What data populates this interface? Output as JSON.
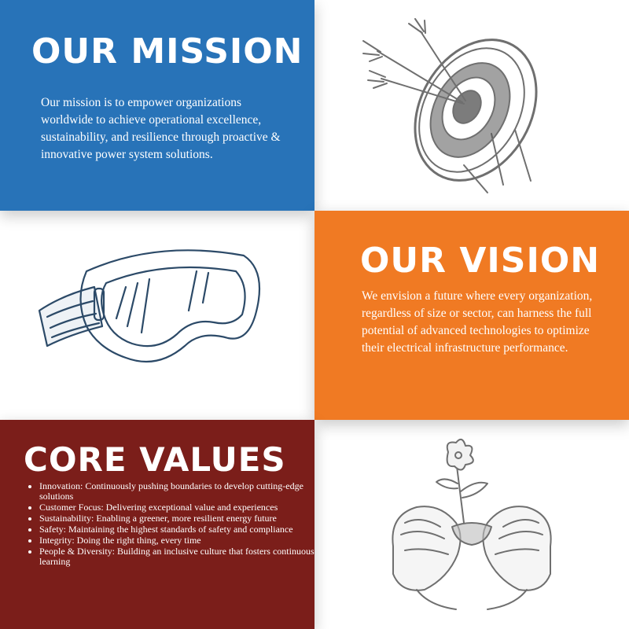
{
  "colors": {
    "mission_bg": "#2873b8",
    "vision_bg": "#f07a23",
    "values_bg": "#7b1e1a",
    "sketch_gray": "#6f6f6f",
    "sketch_navy": "#2c4a68"
  },
  "mission": {
    "title": "OUR MISSION",
    "text": "Our mission is to empower organizations worldwide to achieve operational excellence, sustainability, and resilience through proactive & innovative power system solutions."
  },
  "vision": {
    "title": "OUR VISION",
    "text": "We envision a future where every organization, regardless of size or sector, can harness the full potential of advanced technologies to optimize their electrical infrastructure performance."
  },
  "core_values": {
    "title": "CORE VALUES",
    "items": [
      "Innovation: Continuously pushing boundaries to develop cutting-edge solutions",
      "Customer Focus: Delivering exceptional value and experiences",
      "Sustainability: Enabling a greener, more resilient energy future",
      "Safety: Maintaining the highest standards of safety and compliance",
      "Integrity: Doing the right thing, every time",
      "People & Diversity: Building an inclusive culture that fosters continuous learning"
    ]
  },
  "illustrations": {
    "target": "target-with-arrows-icon",
    "goggles": "safety-goggles-icon",
    "plant": "hands-holding-plant-icon"
  }
}
